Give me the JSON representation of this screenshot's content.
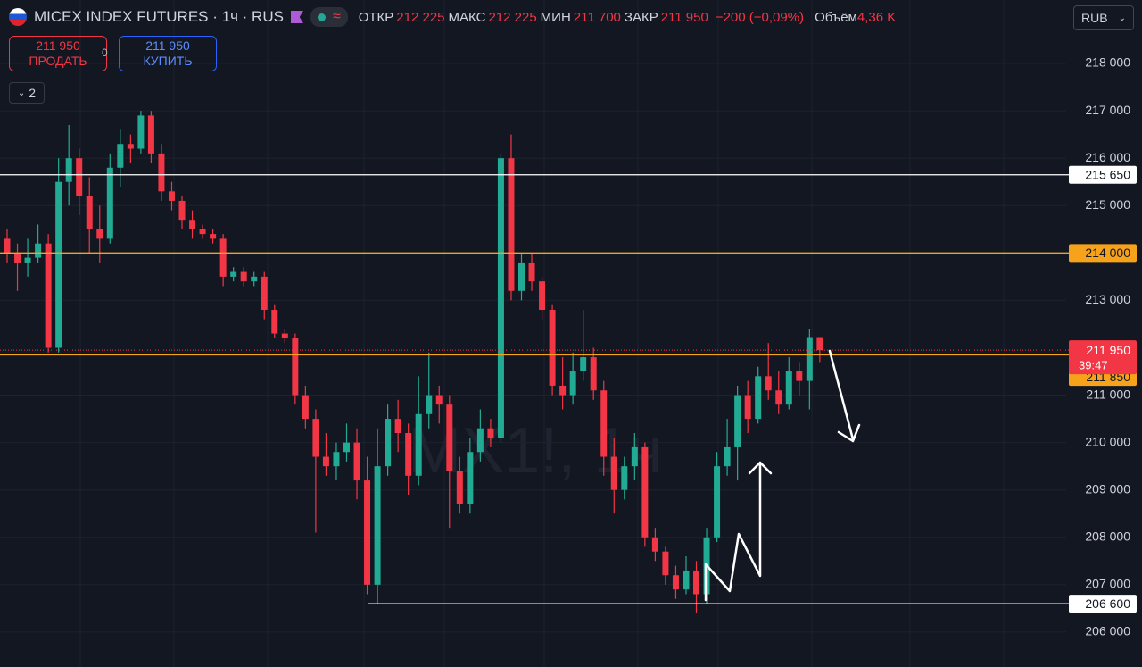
{
  "header": {
    "symbol": "MICEX INDEX FUTURES · 1ч · RUS",
    "ohlc": [
      {
        "label": "ОТКР",
        "value": "212 225"
      },
      {
        "label": "МАКС",
        "value": "212 225"
      },
      {
        "label": "МИН",
        "value": "211 700"
      },
      {
        "label": "ЗАКР",
        "value": "211 950"
      }
    ],
    "change": "−200 (−0,09%)",
    "volume_label": "Объём",
    "volume": "4,36 K",
    "currency": "RUB"
  },
  "trade": {
    "sell_price": "211 950",
    "sell": "ПРОДАТЬ",
    "spread": "0",
    "buy_price": "211 950",
    "buy": "КУПИТЬ"
  },
  "indicators": "2",
  "chart_data": {
    "type": "candlestick",
    "watermark": "MX1!, 1ч",
    "up_color": "#22ab94",
    "down_color": "#f23645",
    "ylim": [
      205264,
      219338
    ],
    "yticks": [
      {
        "value": 218000,
        "label": "218 000"
      },
      {
        "value": 217000,
        "label": "217 000"
      },
      {
        "value": 216000,
        "label": "216 000"
      },
      {
        "value": 215000,
        "label": "215 000"
      },
      {
        "value": 213000,
        "label": "213 000"
      },
      {
        "value": 211000,
        "label": "211 000"
      },
      {
        "value": 210000,
        "label": "210 000"
      },
      {
        "value": 209000,
        "label": "209 000"
      },
      {
        "value": 208000,
        "label": "208 000"
      },
      {
        "value": 207000,
        "label": "207 000"
      },
      {
        "value": 206000,
        "label": "206 000"
      }
    ],
    "grid": true,
    "levels": [
      {
        "value": 215650,
        "label": "215 650",
        "color": "#ffffff"
      },
      {
        "value": 214000,
        "label": "214 000",
        "color": "#f7a21b"
      },
      {
        "value": 211850,
        "label": "211 850",
        "color": "#f7a21b"
      },
      {
        "value": 206600,
        "label": "206 600",
        "color": "#ffffff"
      }
    ],
    "last_price": {
      "value": 211950,
      "label": "211 950",
      "countdown": "39:47",
      "color": "#f23645"
    },
    "ohlc": [
      [
        214300,
        214500,
        213800,
        214000
      ],
      [
        214000,
        214200,
        213200,
        213800
      ],
      [
        213800,
        214300,
        213500,
        213900
      ],
      [
        213900,
        214600,
        213800,
        214200
      ],
      [
        214200,
        214400,
        211900,
        212000
      ],
      [
        212000,
        216000,
        211900,
        215500
      ],
      [
        215500,
        216700,
        215000,
        216000
      ],
      [
        216000,
        216200,
        214800,
        215200
      ],
      [
        215200,
        215600,
        214000,
        214500
      ],
      [
        214500,
        215000,
        213800,
        214300
      ],
      [
        214300,
        216100,
        214200,
        215800
      ],
      [
        215800,
        216600,
        215400,
        216300
      ],
      [
        216300,
        216500,
        215900,
        216200
      ],
      [
        216200,
        217000,
        216100,
        216900
      ],
      [
        216900,
        217000,
        215900,
        216100
      ],
      [
        216100,
        216300,
        215100,
        215300
      ],
      [
        215300,
        215500,
        214900,
        215100
      ],
      [
        215100,
        215200,
        214500,
        214700
      ],
      [
        214700,
        214900,
        214300,
        214500
      ],
      [
        214500,
        214600,
        214300,
        214400
      ],
      [
        214400,
        214500,
        214200,
        214300
      ],
      [
        214300,
        214400,
        213300,
        213500
      ],
      [
        213500,
        213700,
        213400,
        213600
      ],
      [
        213600,
        213700,
        213300,
        213400
      ],
      [
        213400,
        213600,
        213300,
        213500
      ],
      [
        213500,
        213600,
        212600,
        212800
      ],
      [
        212800,
        212900,
        212200,
        212300
      ],
      [
        212300,
        212400,
        212100,
        212200
      ],
      [
        212200,
        212300,
        210800,
        211000
      ],
      [
        211000,
        211200,
        210300,
        210500
      ],
      [
        210500,
        210700,
        208100,
        209700
      ],
      [
        209700,
        210200,
        209300,
        209500
      ],
      [
        209500,
        210000,
        209200,
        209800
      ],
      [
        209800,
        210400,
        209600,
        210000
      ],
      [
        210000,
        210300,
        208800,
        209200
      ],
      [
        209200,
        209700,
        206800,
        207000
      ],
      [
        207000,
        210300,
        206600,
        209500
      ],
      [
        209500,
        210800,
        209300,
        210500
      ],
      [
        210500,
        210900,
        209800,
        210200
      ],
      [
        210200,
        210400,
        208900,
        209300
      ],
      [
        209300,
        211400,
        209100,
        210600
      ],
      [
        210600,
        211900,
        210300,
        211000
      ],
      [
        211000,
        211200,
        210400,
        210800
      ],
      [
        210800,
        211000,
        208200,
        209400
      ],
      [
        209400,
        209700,
        208500,
        208700
      ],
      [
        208700,
        210100,
        208500,
        209800
      ],
      [
        209800,
        210700,
        209600,
        210300
      ],
      [
        210300,
        210500,
        209900,
        210100
      ],
      [
        210100,
        216100,
        210000,
        216000
      ],
      [
        216000,
        216500,
        213000,
        213200
      ],
      [
        213200,
        214000,
        213000,
        213800
      ],
      [
        213800,
        214000,
        213200,
        213400
      ],
      [
        213400,
        213500,
        212600,
        212800
      ],
      [
        212800,
        212900,
        211000,
        211200
      ],
      [
        211200,
        211800,
        210700,
        211000
      ],
      [
        211000,
        211900,
        210800,
        211500
      ],
      [
        211500,
        212800,
        211300,
        211800
      ],
      [
        211800,
        212000,
        210900,
        211100
      ],
      [
        211100,
        211300,
        209300,
        209700
      ],
      [
        209700,
        210100,
        208500,
        209000
      ],
      [
        209000,
        209700,
        208800,
        209500
      ],
      [
        209500,
        210200,
        209200,
        209900
      ],
      [
        209900,
        210000,
        207800,
        208000
      ],
      [
        208000,
        208200,
        207500,
        207700
      ],
      [
        207700,
        207800,
        207000,
        207200
      ],
      [
        207200,
        207400,
        206700,
        206900
      ],
      [
        206900,
        207600,
        206800,
        207300
      ],
      [
        207300,
        207500,
        206400,
        206800
      ],
      [
        206800,
        208200,
        206600,
        208000
      ],
      [
        208000,
        209800,
        207900,
        209500
      ],
      [
        209500,
        210500,
        209300,
        209900
      ],
      [
        209900,
        211200,
        209200,
        211000
      ],
      [
        211000,
        211300,
        210200,
        210500
      ],
      [
        210500,
        211600,
        210400,
        211400
      ],
      [
        211400,
        212100,
        210900,
        211100
      ],
      [
        211100,
        211500,
        210600,
        210800
      ],
      [
        210800,
        211800,
        210700,
        211500
      ],
      [
        211500,
        211700,
        211000,
        211300
      ],
      [
        211300,
        212400,
        210700,
        212225
      ],
      [
        212225,
        212225,
        211700,
        211950
      ]
    ]
  }
}
